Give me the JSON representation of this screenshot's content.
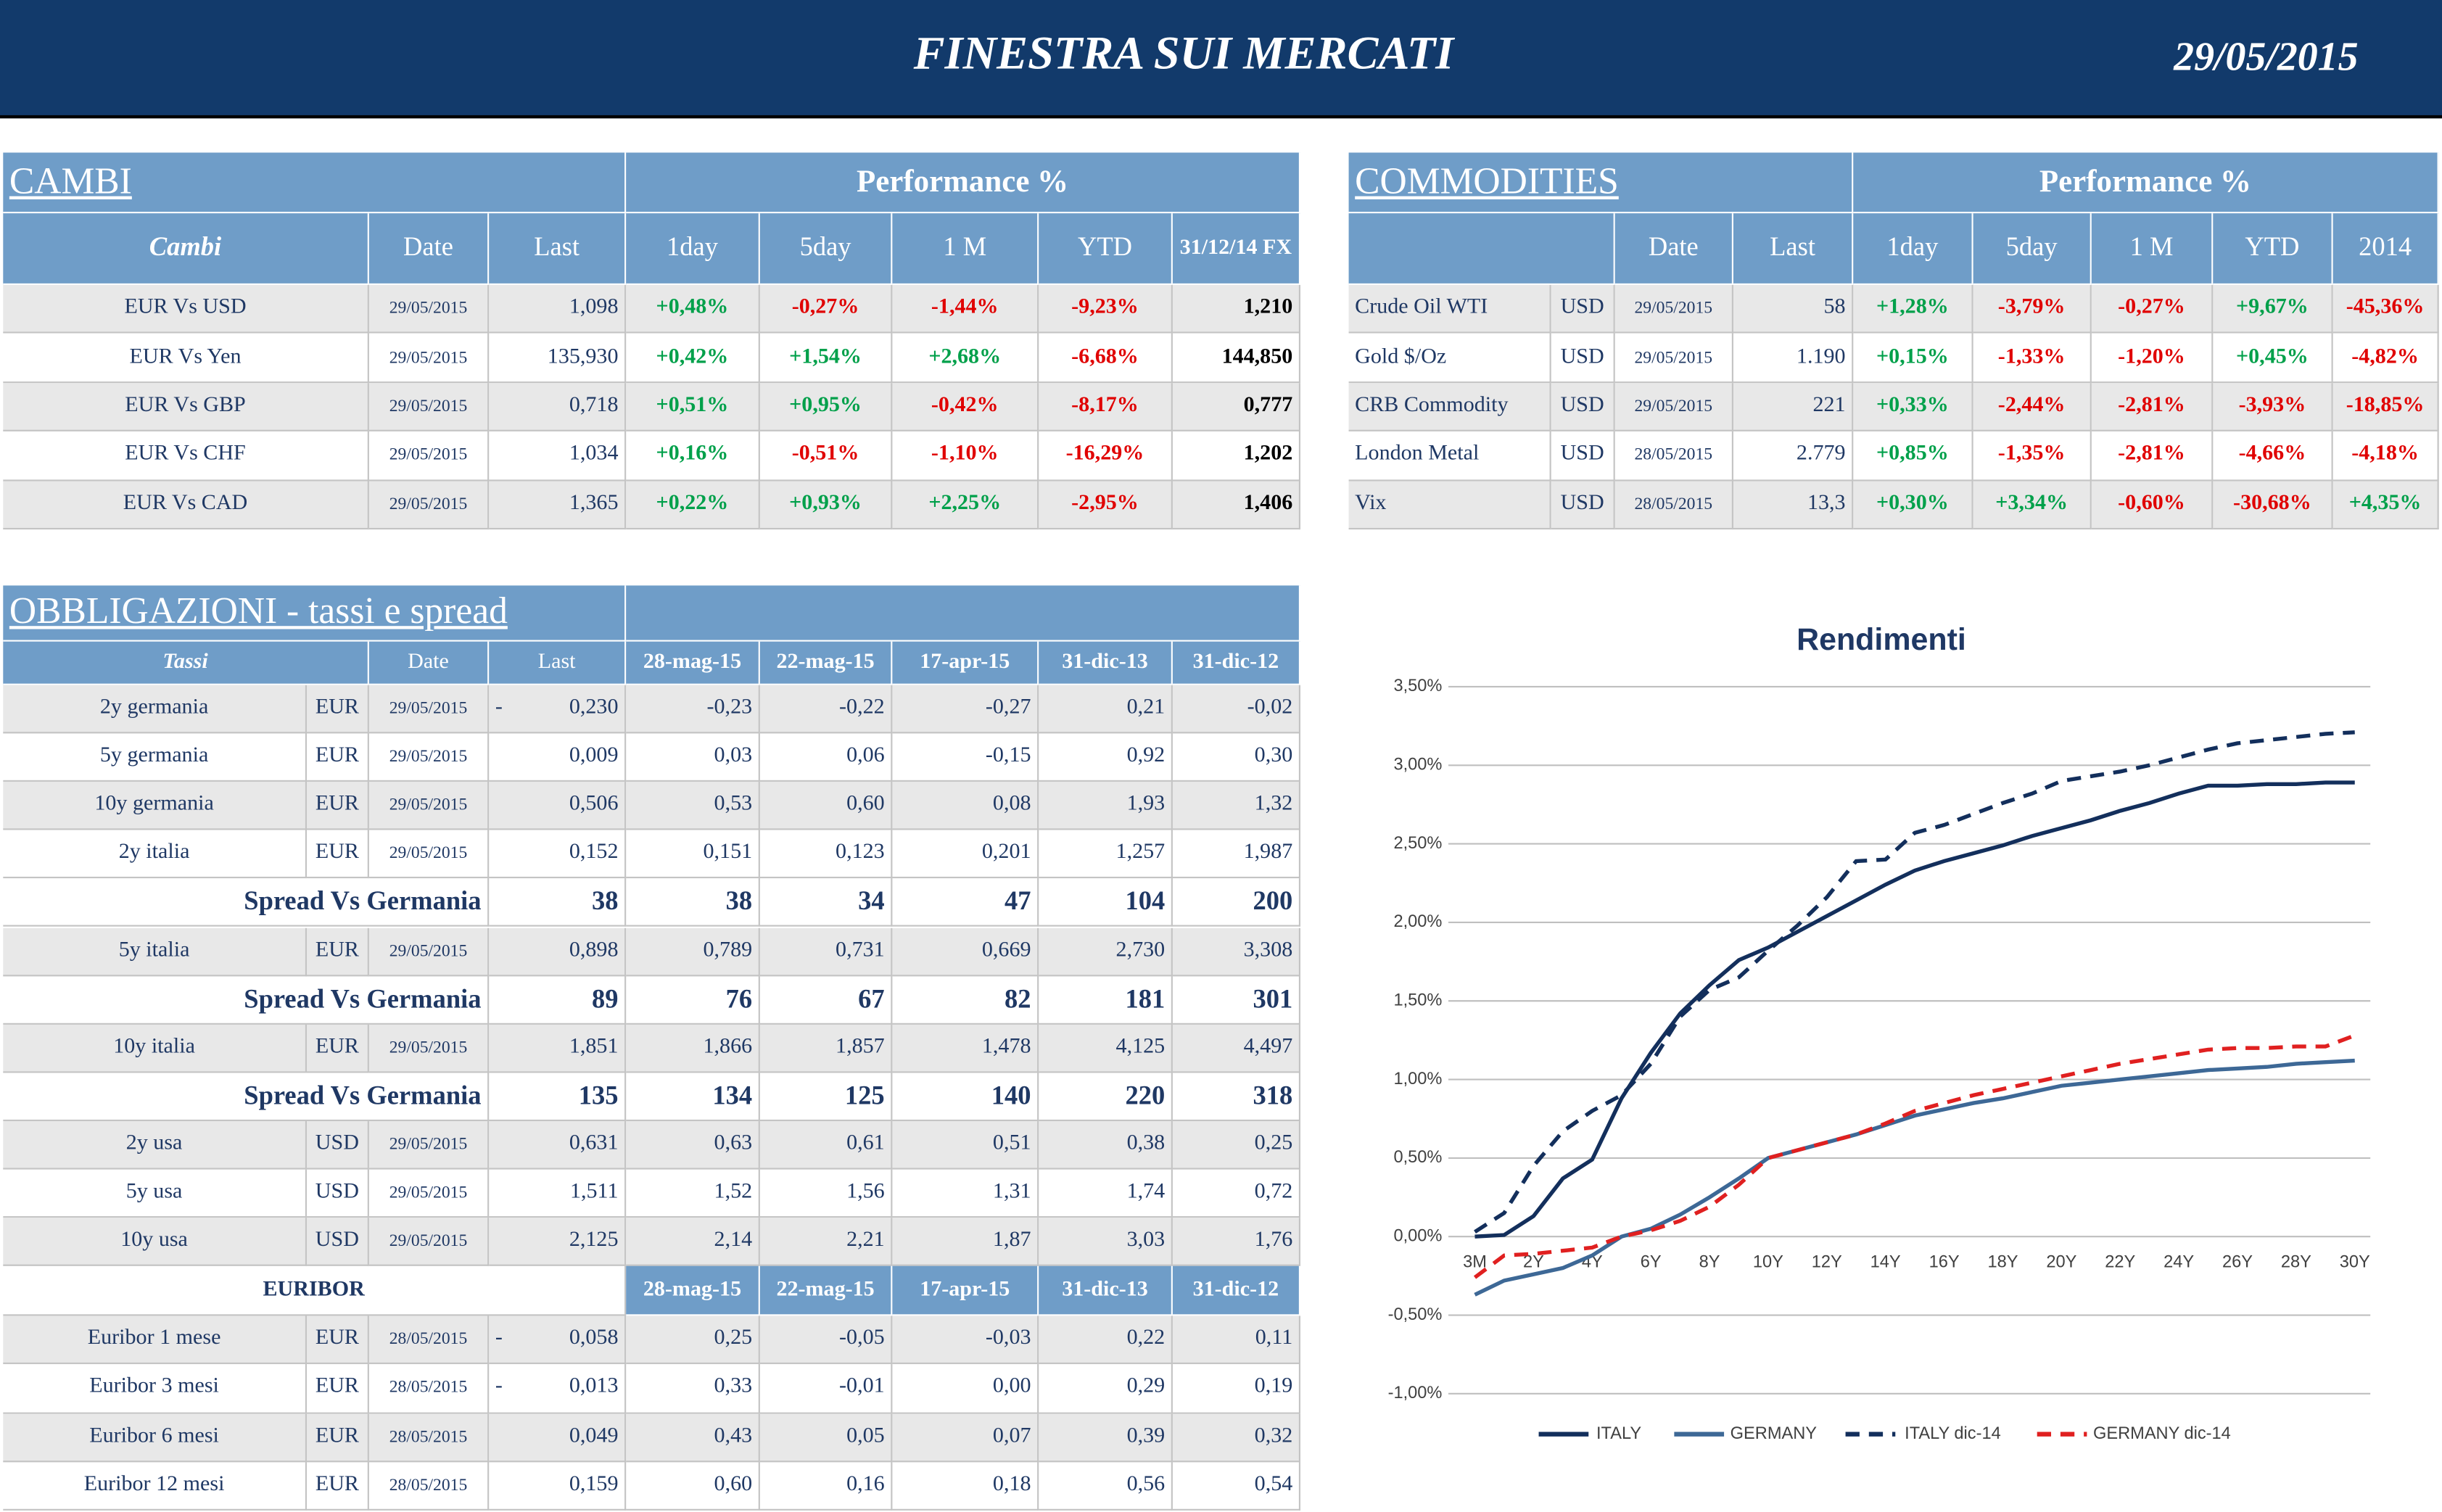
{
  "header": {
    "title": "FINESTRA SUI MERCATI",
    "date": "29/05/2015"
  },
  "cambi": {
    "title": "CAMBI",
    "performance": "Performance  %",
    "columns": [
      "Cambi",
      "Date",
      "Last",
      "1day",
      "5day",
      "1 M",
      "YTD",
      "31/12/14 FX"
    ],
    "rows": [
      [
        "EUR Vs USD",
        "29/05/2015",
        "1,098",
        "+0,48%",
        "-0,27%",
        "-1,44%",
        "-9,23%",
        "1,210"
      ],
      [
        "EUR Vs Yen",
        "29/05/2015",
        "135,930",
        "+0,42%",
        "+1,54%",
        "+2,68%",
        "-6,68%",
        "144,850"
      ],
      [
        "EUR Vs GBP",
        "29/05/2015",
        "0,718",
        "+0,51%",
        "+0,95%",
        "-0,42%",
        "-8,17%",
        "0,777"
      ],
      [
        "EUR Vs CHF",
        "29/05/2015",
        "1,034",
        "+0,16%",
        "-0,51%",
        "-1,10%",
        "-16,29%",
        "1,202"
      ],
      [
        "EUR Vs CAD",
        "29/05/2015",
        "1,365",
        "+0,22%",
        "+0,93%",
        "+2,25%",
        "-2,95%",
        "1,406"
      ]
    ]
  },
  "commodities": {
    "title": "COMMODITIES",
    "performance": "Performance  %",
    "columns": [
      "Date",
      "Last",
      "1day",
      "5day",
      "1 M",
      "YTD",
      "2014"
    ],
    "rows": [
      [
        "Crude Oil WTI",
        "USD",
        "29/05/2015",
        "58",
        "+1,28%",
        "-3,79%",
        "-0,27%",
        "+9,67%",
        "-45,36%"
      ],
      [
        "Gold $/Oz",
        "USD",
        "29/05/2015",
        "1.190",
        "+0,15%",
        "-1,33%",
        "-1,20%",
        "+0,45%",
        "-4,82%"
      ],
      [
        "CRB Commodity",
        "USD",
        "29/05/2015",
        "221",
        "+0,33%",
        "-2,44%",
        "-2,81%",
        "-3,93%",
        "-18,85%"
      ],
      [
        "London Metal",
        "USD",
        "28/05/2015",
        "2.779",
        "+0,85%",
        "-1,35%",
        "-2,81%",
        "-4,66%",
        "-4,18%"
      ],
      [
        "Vix",
        "USD",
        "28/05/2015",
        "13,3",
        "+0,30%",
        "+3,34%",
        "-0,60%",
        "-30,68%",
        "+4,35%"
      ]
    ]
  },
  "obbligazioni": {
    "title": "OBBLIGAZIONI - tassi e spread",
    "columns": [
      "Tassi",
      "Date",
      "Last",
      "28-mag-15",
      "22-mag-15",
      "17-apr-15",
      "31-dic-13",
      "31-dic-12"
    ],
    "rows": [
      {
        "name": "2y germania",
        "currency": "EUR",
        "date": "29/05/2015",
        "sign": "-",
        "last": "0,230",
        "history": [
          "-0,23",
          "-0,22",
          "-0,27",
          "0,21",
          "-0,02"
        ]
      },
      {
        "name": "5y germania",
        "currency": "EUR",
        "date": "29/05/2015",
        "last": "0,009",
        "history": [
          "0,03",
          "0,06",
          "-0,15",
          "0,92",
          "0,30"
        ]
      },
      {
        "name": "10y germania",
        "currency": "EUR",
        "date": "29/05/2015",
        "last": "0,506",
        "history": [
          "0,53",
          "0,60",
          "0,08",
          "1,93",
          "1,32"
        ]
      },
      {
        "name": "2y italia",
        "currency": "EUR",
        "date": "29/05/2015",
        "last": "0,152",
        "history": [
          "0,151",
          "0,123",
          "0,201",
          "1,257",
          "1,987"
        ]
      },
      {
        "label": "Spread Vs Germania",
        "last": "38",
        "history": [
          "38",
          "34",
          "47",
          "104",
          "200"
        ]
      },
      {
        "name": "5y italia",
        "currency": "EUR",
        "date": "29/05/2015",
        "last": "0,898",
        "history": [
          "0,789",
          "0,731",
          "0,669",
          "2,730",
          "3,308"
        ]
      },
      {
        "label": "Spread Vs Germania",
        "last": "89",
        "history": [
          "76",
          "67",
          "82",
          "181",
          "301"
        ]
      },
      {
        "name": "10y italia",
        "currency": "EUR",
        "date": "29/05/2015",
        "last": "1,851",
        "history": [
          "1,866",
          "1,857",
          "1,478",
          "4,125",
          "4,497"
        ]
      },
      {
        "label": "Spread Vs Germania",
        "last": "135",
        "history": [
          "134",
          "125",
          "140",
          "220",
          "318"
        ]
      },
      {
        "name": "2y usa",
        "currency": "USD",
        "date": "29/05/2015",
        "last": "0,631",
        "history": [
          "0,63",
          "0,61",
          "0,51",
          "0,38",
          "0,25"
        ]
      },
      {
        "name": "5y usa",
        "currency": "USD",
        "date": "29/05/2015",
        "last": "1,511",
        "history": [
          "1,52",
          "1,56",
          "1,31",
          "1,74",
          "0,72"
        ]
      },
      {
        "name": "10y usa",
        "currency": "USD",
        "date": "29/05/2015",
        "last": "2,125",
        "history": [
          "2,14",
          "2,21",
          "1,87",
          "3,03",
          "1,76"
        ]
      }
    ]
  },
  "euribor": {
    "title": "EURIBOR",
    "columns": [
      "28-mag-15",
      "22-mag-15",
      "17-apr-15",
      "31-dic-13",
      "31-dic-12"
    ],
    "rows": [
      {
        "name": "Euribor 1 mese",
        "currency": "EUR",
        "date": "28/05/2015",
        "sign": "-",
        "last": "0,058",
        "history": [
          "0,25",
          "-0,05",
          "-0,03",
          "0,22",
          "0,11"
        ]
      },
      {
        "name": "Euribor 3 mesi",
        "currency": "EUR",
        "date": "28/05/2015",
        "sign": "-",
        "last": "0,013",
        "history": [
          "0,33",
          "-0,01",
          "0,00",
          "0,29",
          "0,19"
        ]
      },
      {
        "name": "Euribor 6 mesi",
        "currency": "EUR",
        "date": "28/05/2015",
        "last": "0,049",
        "history": [
          "0,43",
          "0,05",
          "0,07",
          "0,39",
          "0,32"
        ]
      },
      {
        "name": "Euribor 12 mesi",
        "currency": "EUR",
        "date": "28/05/2015",
        "last": "0,159",
        "history": [
          "0,60",
          "0,16",
          "0,18",
          "0,56",
          "0,54"
        ]
      }
    ]
  },
  "chart_data": {
    "type": "line",
    "title": "Rendimenti",
    "categories": [
      "3M",
      null,
      "2Y",
      null,
      "4Y",
      null,
      "6Y",
      null,
      "8Y",
      null,
      "10Y",
      null,
      "12Y",
      null,
      "14Y",
      null,
      "16Y",
      null,
      "18Y",
      null,
      "20Y",
      null,
      "22Y",
      null,
      "24Y",
      null,
      "26Y",
      null,
      "28Y",
      null,
      "30Y"
    ],
    "ylim": [
      -1,
      3.5
    ],
    "yticks": [
      {
        "value": -1,
        "label": "-1,00%"
      },
      {
        "value": -0.5,
        "label": "-0,50%"
      },
      {
        "value": 0,
        "label": "0,00%"
      },
      {
        "value": 0.5,
        "label": "0,50%"
      },
      {
        "value": 1,
        "label": "1,00%"
      },
      {
        "value": 1.5,
        "label": "1,50%"
      },
      {
        "value": 2,
        "label": "2,00%"
      },
      {
        "value": 2.5,
        "label": "2,50%"
      },
      {
        "value": 3,
        "label": "3,00%"
      },
      {
        "value": 3.5,
        "label": "3,50%"
      }
    ],
    "grid": true,
    "legend": "bottom",
    "series": [
      {
        "name": "ITALY",
        "color": "#132f5c",
        "dash": "solid",
        "values": [
          0.0,
          0.01,
          0.13,
          0.37,
          0.49,
          0.88,
          1.17,
          1.42,
          1.6,
          1.76,
          1.84,
          1.94,
          2.04,
          2.14,
          2.24,
          2.33,
          2.39,
          2.44,
          2.49,
          2.55,
          2.6,
          2.65,
          2.71,
          2.76,
          2.82,
          2.87,
          2.87,
          2.88,
          2.88,
          2.89,
          2.89
        ]
      },
      {
        "name": "GERMANY",
        "color": "#3d6896",
        "dash": "solid",
        "values": [
          -0.37,
          -0.28,
          -0.24,
          -0.2,
          -0.12,
          0.0,
          0.05,
          0.14,
          0.25,
          0.37,
          0.5,
          0.55,
          0.6,
          0.65,
          0.71,
          0.77,
          0.81,
          0.85,
          0.88,
          0.92,
          0.96,
          0.98,
          1.0,
          1.02,
          1.04,
          1.06,
          1.07,
          1.08,
          1.1,
          1.11,
          1.12
        ]
      },
      {
        "name": "ITALY dic-14",
        "color": "#132f5c",
        "dash": "dashed",
        "values": [
          0.03,
          0.15,
          0.45,
          0.67,
          0.8,
          0.9,
          1.1,
          1.4,
          1.57,
          1.65,
          1.82,
          1.98,
          2.16,
          2.39,
          2.4,
          2.57,
          2.62,
          2.69,
          2.76,
          2.82,
          2.9,
          2.93,
          2.96,
          3.0,
          3.05,
          3.1,
          3.14,
          3.16,
          3.18,
          3.2,
          3.21
        ]
      },
      {
        "name": "GERMANY dic-14",
        "color": "#e02020",
        "dash": "dashed",
        "values": [
          -0.26,
          -0.12,
          -0.11,
          -0.09,
          -0.07,
          0.0,
          0.04,
          0.1,
          0.19,
          0.33,
          0.5,
          0.55,
          0.6,
          0.65,
          0.72,
          0.8,
          0.85,
          0.9,
          0.94,
          0.98,
          1.02,
          1.06,
          1.1,
          1.13,
          1.16,
          1.19,
          1.2,
          1.2,
          1.21,
          1.21,
          1.28
        ]
      }
    ]
  }
}
